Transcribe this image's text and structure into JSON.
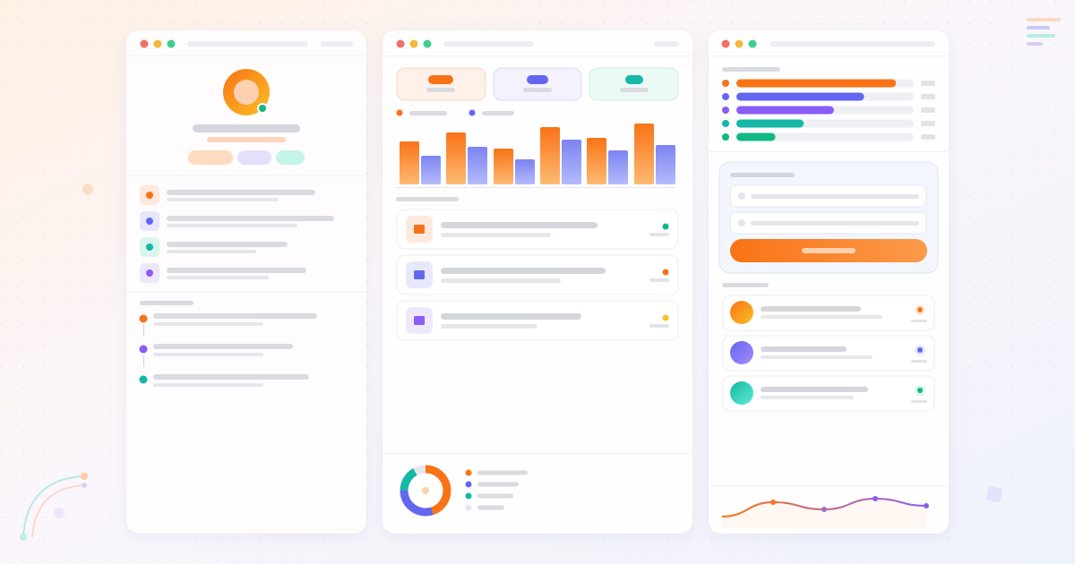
{
  "chart_data": [
    {
      "type": "bar",
      "ylim": [
        0,
        70
      ],
      "series": [
        {
          "color": "#f97316",
          "values": [
            48,
            58,
            40,
            64,
            52,
            68
          ]
        },
        {
          "color": "#818cf8",
          "values": [
            32,
            42,
            28,
            50,
            38,
            44
          ]
        }
      ]
    },
    {
      "type": "progress",
      "xlim": [
        0,
        100
      ],
      "series": [
        {
          "color": "#f97316",
          "values": [
            90
          ]
        },
        {
          "color": "#6366f1",
          "values": [
            72
          ]
        },
        {
          "color": "#8b5cf6",
          "values": [
            55
          ]
        },
        {
          "color": "#14b8a6",
          "values": [
            38
          ]
        },
        {
          "color": "#10b981",
          "values": [
            22
          ]
        }
      ]
    },
    {
      "type": "pie",
      "values": [
        45,
        30,
        17,
        8
      ],
      "colors": [
        "#f97316",
        "#6366f1",
        "#14b8a6",
        "#e5e7eb"
      ]
    },
    {
      "type": "line",
      "ylim": [
        0,
        40
      ],
      "values": [
        13,
        29,
        21,
        33,
        25
      ]
    }
  ]
}
